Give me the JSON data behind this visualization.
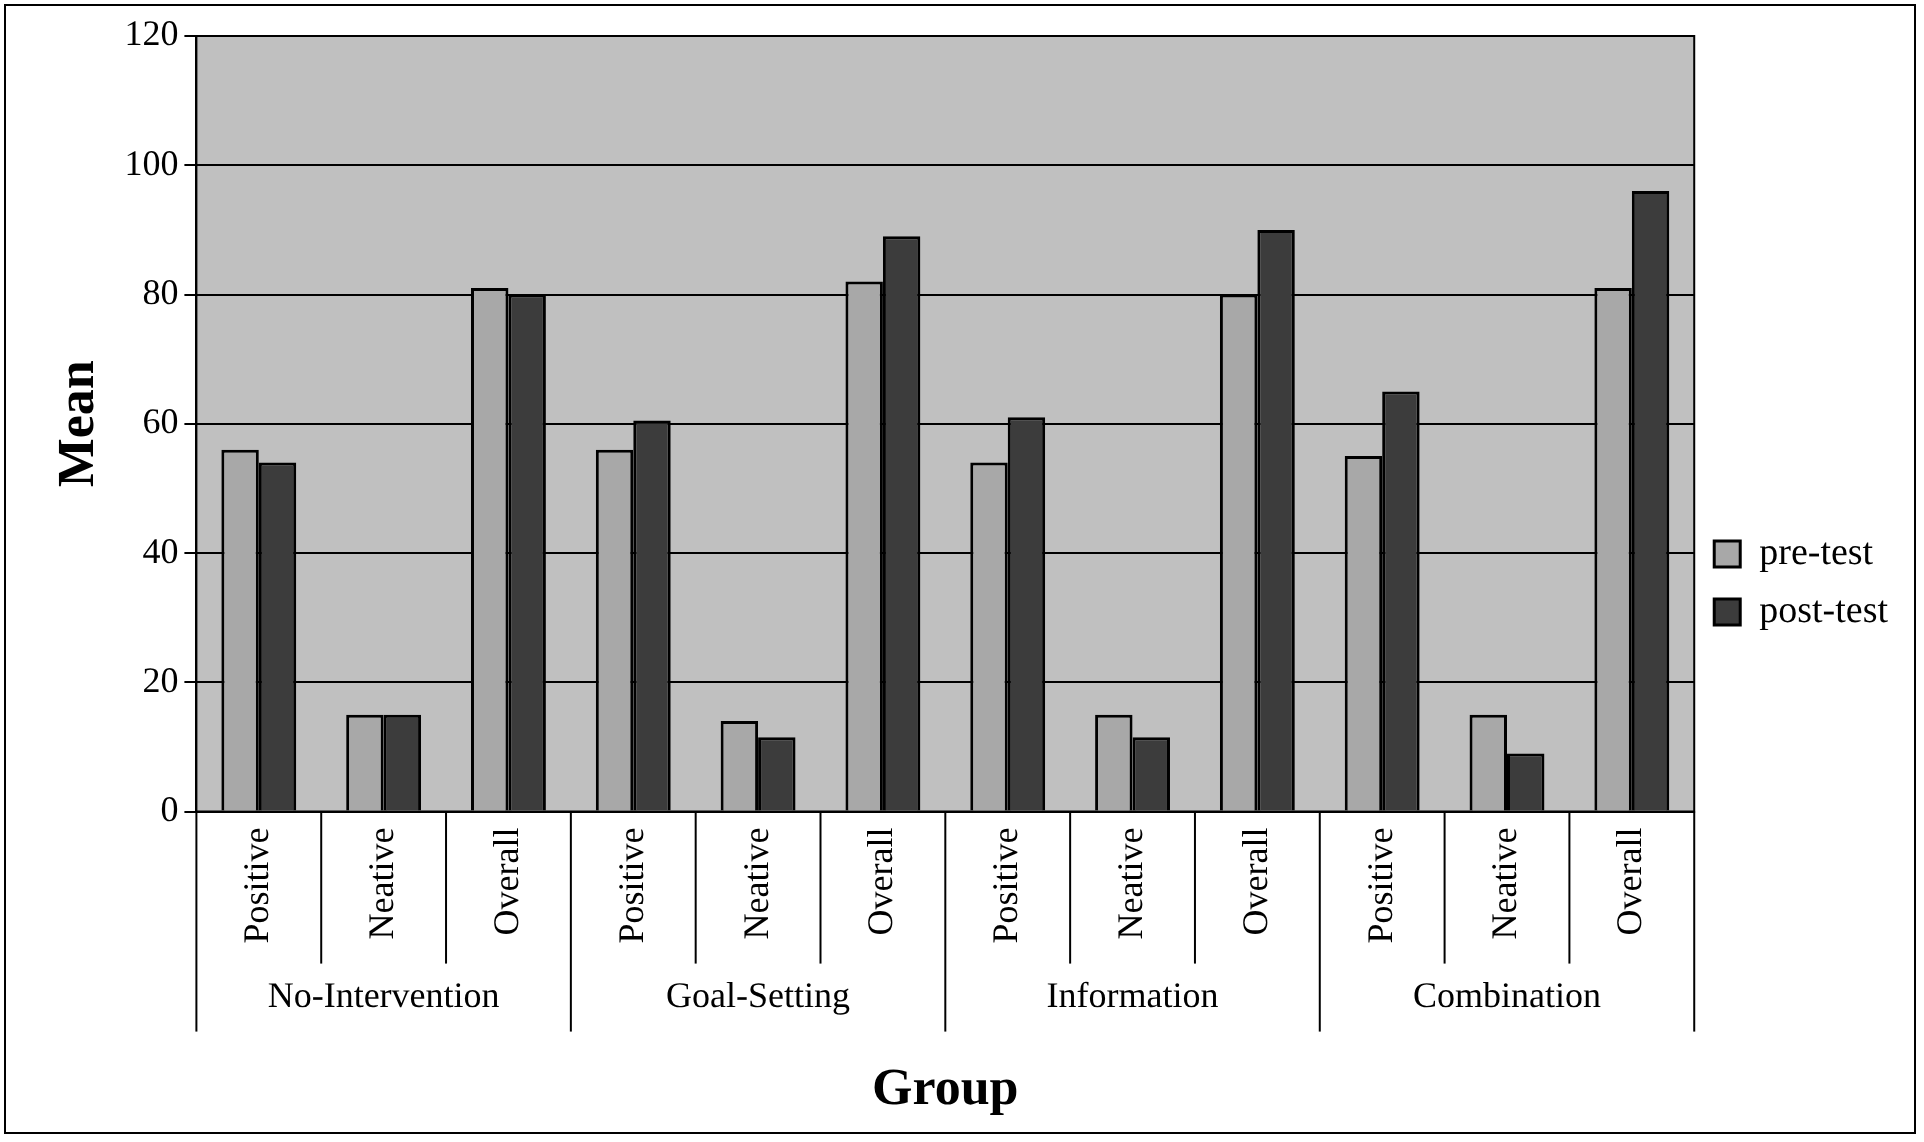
{
  "chart_data": {
    "type": "bar",
    "xlabel": "Group",
    "ylabel": "Mean",
    "categories": [
      "Positive",
      "Neative",
      "Overall",
      "Positive",
      "Neative",
      "Overall",
      "Positive",
      "Neative",
      "Overall",
      "Positive",
      "Neative",
      "Overall"
    ],
    "annotations": [
      "No-Intervention",
      "Goal-Setting",
      "Information",
      "Combination"
    ],
    "series": [
      {
        "name": "pre-test",
        "color": "#a8a8a8",
        "values": [
          56,
          15,
          81,
          56,
          14,
          82,
          54,
          15,
          80,
          55,
          15,
          81
        ]
      },
      {
        "name": "post-test",
        "color": "#3c3c3c",
        "values": [
          54,
          15,
          80,
          60.5,
          11.5,
          89,
          61,
          11.5,
          90,
          65,
          9,
          96
        ]
      }
    ],
    "ylim": [
      0,
      120
    ],
    "yticks": [
      0,
      20,
      40,
      60,
      80,
      100,
      120
    ],
    "grid": "y",
    "legend": "right"
  }
}
